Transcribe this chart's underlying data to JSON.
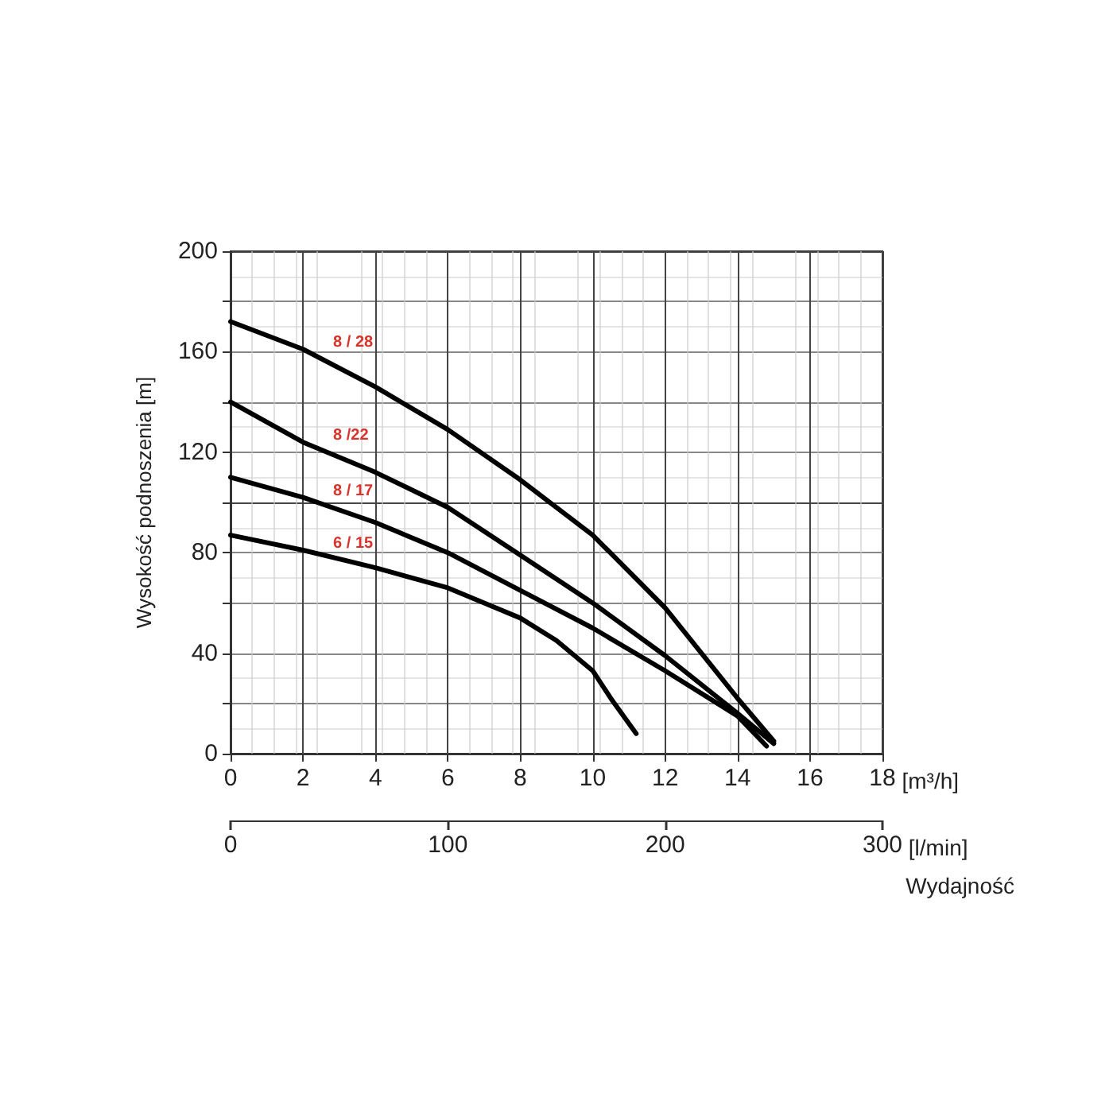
{
  "chart_data": {
    "type": "line",
    "ylabel": "Wysokość podnoszenia [m]",
    "xlabel": "[m³/h]",
    "x2label": "[l/min]",
    "annotations": [
      "Wydajność"
    ],
    "xlim": [
      0,
      18
    ],
    "xticks": [
      0,
      2,
      4,
      6,
      8,
      10,
      12,
      14,
      16,
      18
    ],
    "x2lim": [
      0,
      300
    ],
    "x2ticks": [
      0,
      100,
      200,
      300
    ],
    "ylim": [
      0,
      200
    ],
    "yticks": [
      0,
      {
        "value": 20,
        "label": null
      },
      40,
      {
        "value": 60,
        "label": null
      },
      80,
      {
        "value": 100,
        "label": null
      },
      120,
      {
        "value": 140,
        "label": null
      },
      160,
      {
        "value": 180,
        "label": null
      },
      200
    ],
    "grid": true,
    "legend": false,
    "marker": "none",
    "line_style": "solid",
    "series": [
      {
        "name": "8 / 28",
        "color": "#000000",
        "x": [
          0,
          2,
          4,
          6,
          8,
          10,
          12,
          14,
          15
        ],
        "values": [
          172,
          161,
          146,
          129,
          109,
          87,
          58,
          22,
          5
        ]
      },
      {
        "name": "8 /22",
        "color": "#000000",
        "x": [
          0,
          2,
          4,
          6,
          8,
          10,
          12,
          14,
          15
        ],
        "values": [
          140,
          124,
          112,
          98,
          79,
          60,
          39,
          16,
          4
        ]
      },
      {
        "name": "8 / 17",
        "color": "#000000",
        "x": [
          0,
          2,
          4,
          6,
          8,
          10,
          12,
          14,
          14.8
        ],
        "values": [
          110,
          102,
          92,
          80,
          65,
          50,
          33,
          15,
          3
        ]
      },
      {
        "name": "6 / 15",
        "color": "#000000",
        "x": [
          0,
          2,
          4,
          6,
          8,
          9,
          10,
          10.5,
          11.2
        ],
        "values": [
          87,
          81,
          74,
          66,
          54,
          45,
          33,
          22,
          8
        ]
      }
    ]
  }
}
